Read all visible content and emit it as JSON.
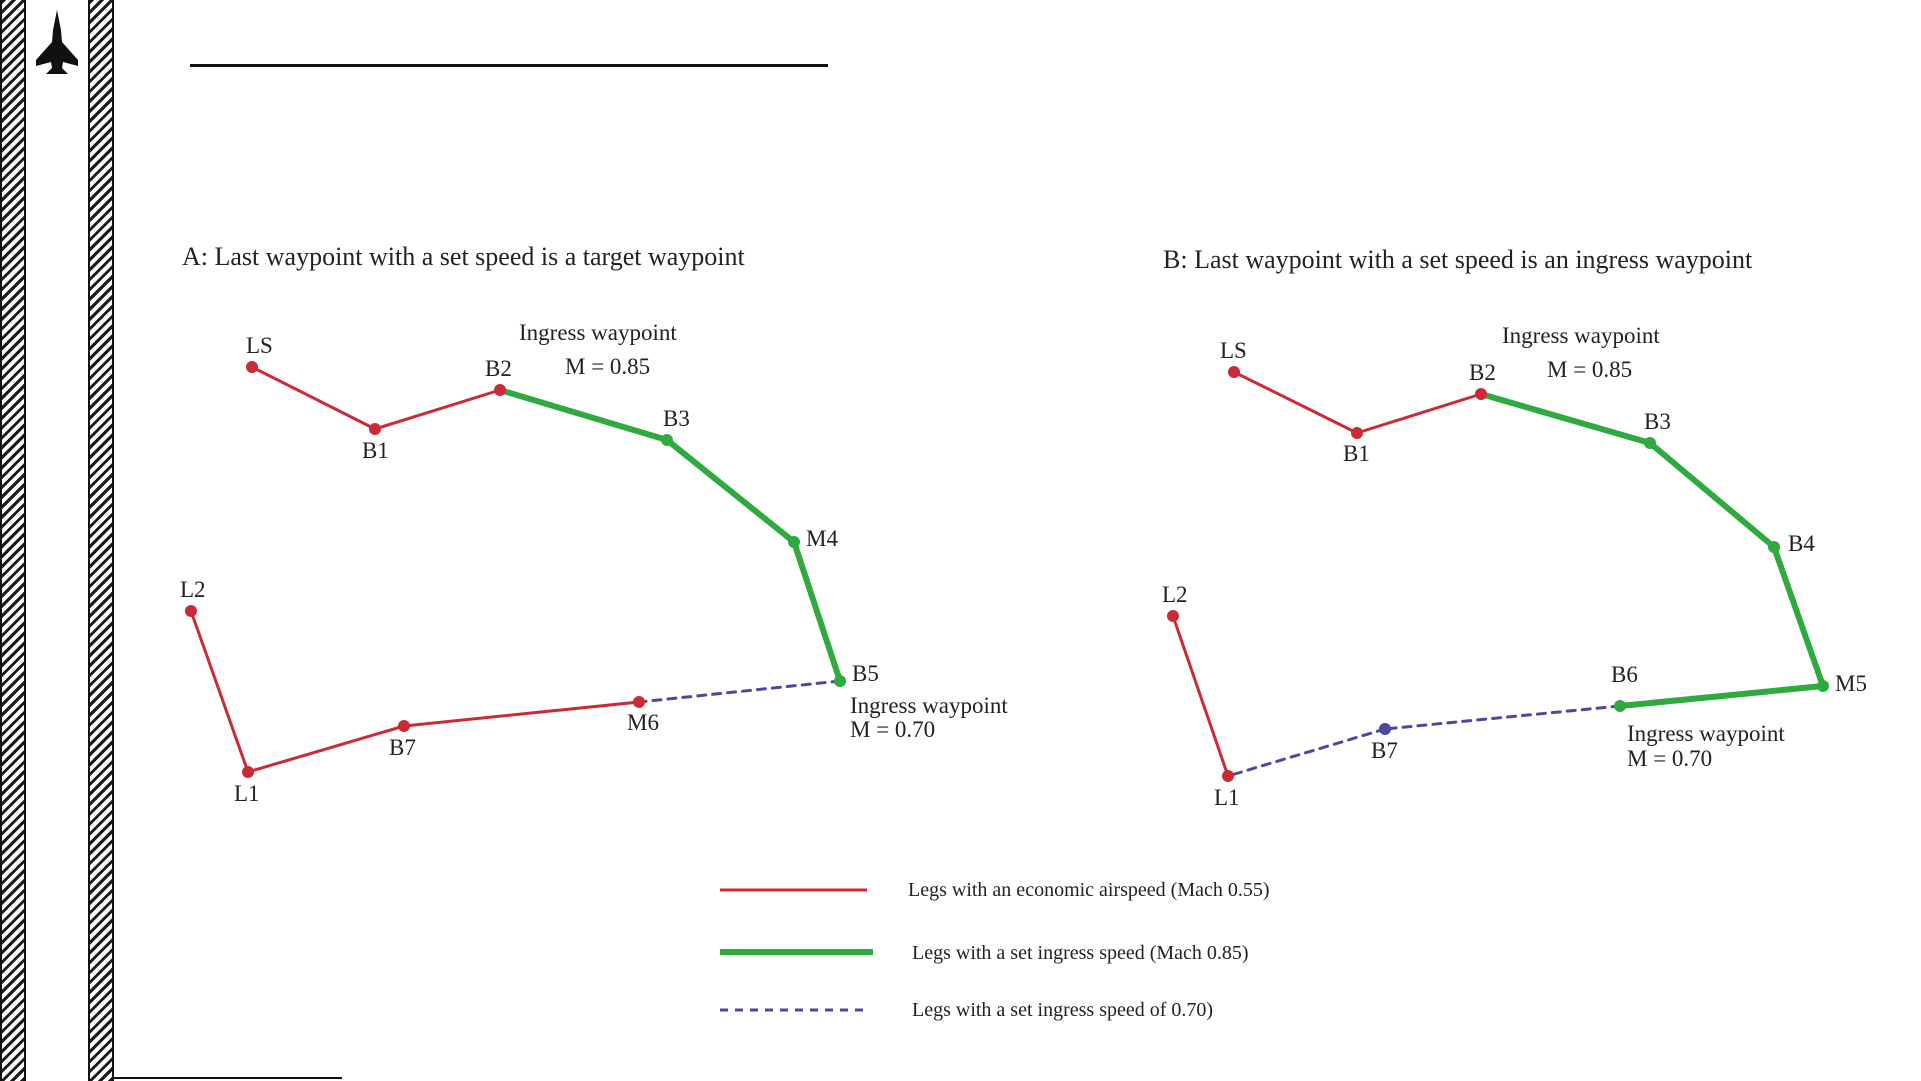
{
  "colors": {
    "economic": "#cc2a36",
    "ingress": "#2eaa3e",
    "set070": "#4a4aa0"
  },
  "icons": {
    "side_logo": "jet-silhouette-icon"
  },
  "panel_a": {
    "title": "A: Last waypoint with a set speed is a target waypoint",
    "note_top_line1": "Ingress waypoint",
    "note_top_line2": "M = 0.85",
    "note_bottom_line1": "Ingress waypoint",
    "note_bottom_line2": "M = 0.70",
    "waypoints": [
      {
        "id": "LS",
        "label": "LS",
        "color": "economic"
      },
      {
        "id": "B1",
        "label": "B1",
        "color": "economic"
      },
      {
        "id": "B2",
        "label": "B2",
        "color": "economic"
      },
      {
        "id": "B3",
        "label": "B3",
        "color": "ingress"
      },
      {
        "id": "M4",
        "label": "M4",
        "color": "ingress"
      },
      {
        "id": "B5",
        "label": "B5",
        "color": "ingress"
      },
      {
        "id": "M6",
        "label": "M6",
        "color": "economic"
      },
      {
        "id": "B7",
        "label": "B7",
        "color": "economic"
      },
      {
        "id": "L1",
        "label": "L1",
        "color": "economic"
      },
      {
        "id": "L2",
        "label": "L2",
        "color": "economic"
      }
    ],
    "legs": [
      {
        "from": "LS",
        "to": "B1",
        "type": "economic"
      },
      {
        "from": "B1",
        "to": "B2",
        "type": "economic"
      },
      {
        "from": "B2",
        "to": "B3",
        "type": "ingress"
      },
      {
        "from": "B3",
        "to": "M4",
        "type": "ingress"
      },
      {
        "from": "M4",
        "to": "B5",
        "type": "ingress"
      },
      {
        "from": "B5",
        "to": "M6",
        "type": "set070"
      },
      {
        "from": "M6",
        "to": "B7",
        "type": "economic"
      },
      {
        "from": "B7",
        "to": "L1",
        "type": "economic"
      },
      {
        "from": "L1",
        "to": "L2",
        "type": "economic"
      }
    ]
  },
  "panel_b": {
    "title": "B: Last waypoint with a set speed is an ingress waypoint",
    "note_top_line1": "Ingress waypoint",
    "note_top_line2": "M = 0.85",
    "note_bottom_line1": "Ingress waypoint",
    "note_bottom_line2": "M = 0.70",
    "waypoints": [
      {
        "id": "LS",
        "label": "LS",
        "color": "economic"
      },
      {
        "id": "B1",
        "label": "B1",
        "color": "economic"
      },
      {
        "id": "B2",
        "label": "B2",
        "color": "economic"
      },
      {
        "id": "B3",
        "label": "B3",
        "color": "ingress"
      },
      {
        "id": "B4",
        "label": "B4",
        "color": "ingress"
      },
      {
        "id": "M5",
        "label": "M5",
        "color": "ingress"
      },
      {
        "id": "B6",
        "label": "B6",
        "color": "ingress"
      },
      {
        "id": "B7",
        "label": "B7",
        "color": "set070"
      },
      {
        "id": "L1",
        "label": "L1",
        "color": "economic"
      },
      {
        "id": "L2",
        "label": "L2",
        "color": "economic"
      }
    ],
    "legs": [
      {
        "from": "LS",
        "to": "B1",
        "type": "economic"
      },
      {
        "from": "B1",
        "to": "B2",
        "type": "economic"
      },
      {
        "from": "B2",
        "to": "B3",
        "type": "ingress"
      },
      {
        "from": "B3",
        "to": "B4",
        "type": "ingress"
      },
      {
        "from": "B4",
        "to": "M5",
        "type": "ingress"
      },
      {
        "from": "M5",
        "to": "B6",
        "type": "ingress"
      },
      {
        "from": "B6",
        "to": "B7",
        "type": "set070"
      },
      {
        "from": "B7",
        "to": "L1",
        "type": "set070"
      },
      {
        "from": "L1",
        "to": "L2",
        "type": "economic"
      }
    ]
  },
  "legend": {
    "economic": "Legs with an economic airspeed (Mach 0.55)",
    "ingress": "Legs with a set ingress speed (Mach 0.85)",
    "set070": "Legs with a set ingress speed of 0.70)"
  }
}
